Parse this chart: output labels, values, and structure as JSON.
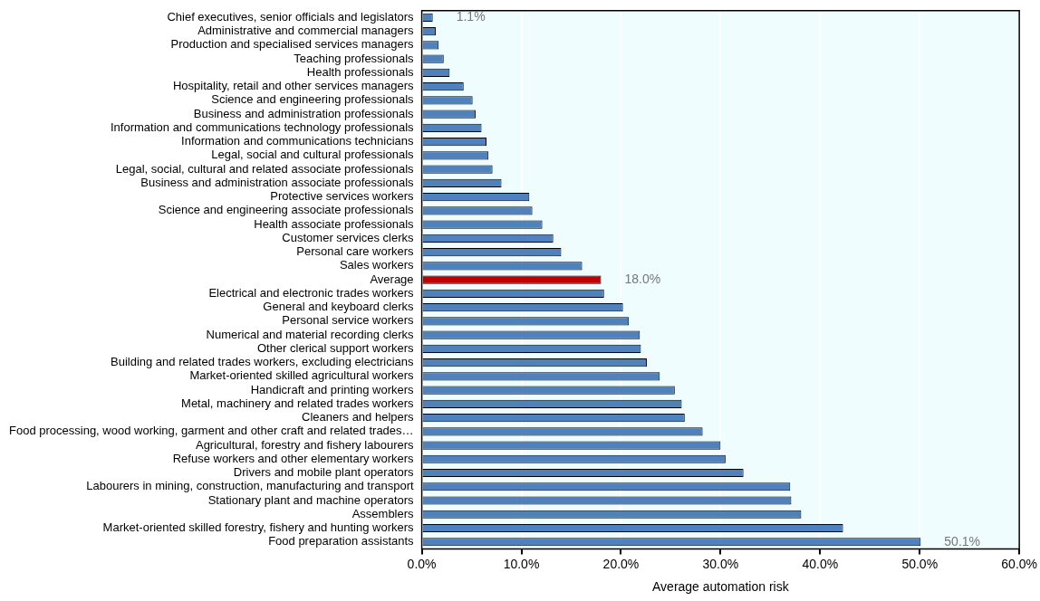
{
  "chart_data": {
    "type": "bar",
    "orientation": "horizontal",
    "xlabel": "Average automation risk",
    "categories": [
      "Chief executives, senior officials and legislators",
      "Administrative and commercial managers",
      "Production and specialised services managers",
      "Teaching professionals",
      "Health professionals",
      "Hospitality, retail and other services managers",
      "Science and engineering professionals",
      "Business and administration professionals",
      "Information and communications technology professionals",
      "Information and communications technicians",
      "Legal, social and cultural professionals",
      "Legal, social, cultural and related associate professionals",
      "Business and administration associate professionals",
      "Protective services workers",
      "Science and engineering associate professionals",
      "Health associate professionals",
      "Customer services clerks",
      "Personal care workers",
      "Sales workers",
      "Average",
      "Electrical and electronic trades workers",
      "General and keyboard clerks",
      "Personal service workers",
      "Numerical and material recording clerks",
      "Other clerical support workers",
      "Building and related trades workers, excluding electricians",
      "Market-oriented skilled agricultural workers",
      "Handicraft and printing workers",
      "Metal, machinery and related trades workers",
      "Cleaners and helpers",
      "Food processing, wood working, garment and other craft and related trades…",
      "Agricultural, forestry and fishery labourers",
      "Refuse workers and other elementary workers",
      "Drivers and mobile plant operators",
      "Labourers in mining, construction, manufacturing and transport",
      "Stationary plant and machine operators",
      "Assemblers",
      "Market-oriented skilled forestry, fishery and hunting workers",
      "Food preparation assistants"
    ],
    "values": [
      1.1,
      1.4,
      1.7,
      2.2,
      2.8,
      4.2,
      5.1,
      5.4,
      6.0,
      6.5,
      6.7,
      7.1,
      8.0,
      10.8,
      11.1,
      12.1,
      13.2,
      14.0,
      16.1,
      18.0,
      18.3,
      20.2,
      20.8,
      21.9,
      22.0,
      22.6,
      23.9,
      25.4,
      26.1,
      26.4,
      28.2,
      30.0,
      30.5,
      32.3,
      37.0,
      37.1,
      38.1,
      42.3,
      50.1
    ],
    "colors": [
      "#4f81bd",
      "#4f81bd",
      "#4f81bd",
      "#4f81bd",
      "#4f81bd",
      "#4f81bd",
      "#4f81bd",
      "#4f81bd",
      "#4f81bd",
      "#4f81bd",
      "#4f81bd",
      "#4f81bd",
      "#4f81bd",
      "#4f81bd",
      "#4f81bd",
      "#4f81bd",
      "#4f81bd",
      "#4f81bd",
      "#4f81bd",
      "#c00000",
      "#4f81bd",
      "#4f81bd",
      "#4f81bd",
      "#4f81bd",
      "#4f81bd",
      "#4f81bd",
      "#4f81bd",
      "#4f81bd",
      "#4f81bd",
      "#4f81bd",
      "#4f81bd",
      "#4f81bd",
      "#4f81bd",
      "#4f81bd",
      "#4f81bd",
      "#4f81bd",
      "#4f81bd",
      "#4f81bd",
      "#4f81bd"
    ],
    "value_labels": [
      "1.1%",
      null,
      null,
      null,
      null,
      null,
      null,
      null,
      null,
      null,
      null,
      null,
      null,
      null,
      null,
      null,
      null,
      null,
      null,
      "18.0%",
      null,
      null,
      null,
      null,
      null,
      null,
      null,
      null,
      null,
      null,
      null,
      null,
      null,
      null,
      null,
      null,
      null,
      null,
      "50.1%"
    ],
    "xlim": [
      0,
      60
    ],
    "xticks": [
      {
        "value": 0,
        "label": "0.0%"
      },
      {
        "value": 10,
        "label": "10.0%"
      },
      {
        "value": 20,
        "label": "20.0%"
      },
      {
        "value": 30,
        "label": "30.0%"
      },
      {
        "value": 40,
        "label": "40.0%"
      },
      {
        "value": 50,
        "label": "50.0%"
      },
      {
        "value": 60,
        "label": "60.0%"
      }
    ],
    "grid": "x",
    "legend": false
  }
}
